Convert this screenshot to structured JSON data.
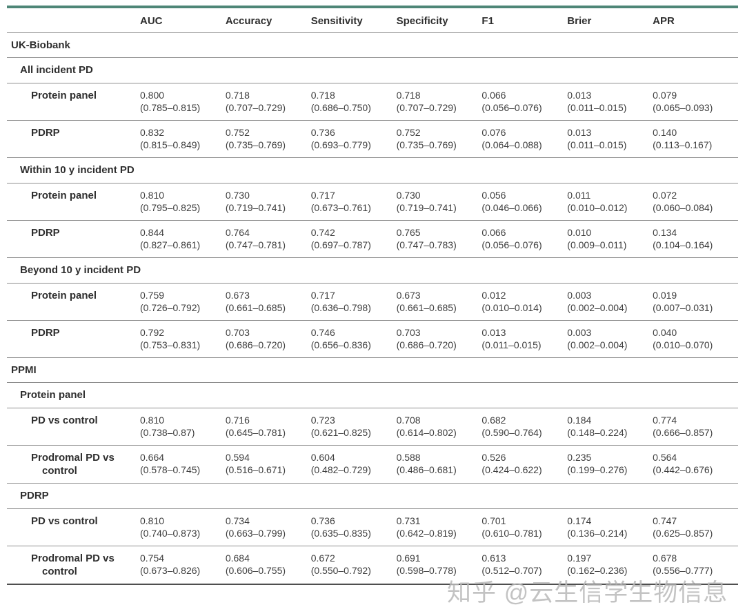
{
  "colors": {
    "accent_top_border": "#4e8677",
    "row_separator": "#8d8d8d",
    "text": "#2e2e2e",
    "watermark": "#b9b9b9"
  },
  "watermark": {
    "text": "知乎 @云生信学生物信息"
  },
  "table": {
    "columns": [
      "AUC",
      "Accuracy",
      "Sensitivity",
      "Specificity",
      "F1",
      "Brier",
      "APR"
    ],
    "rows": [
      {
        "type": "section",
        "label": "UK-Biobank"
      },
      {
        "type": "subsection",
        "label": "All incident PD"
      },
      {
        "type": "data",
        "label": "Protein panel",
        "values": [
          [
            "0.800",
            "(0.785–0.815)"
          ],
          [
            "0.718",
            "(0.707–0.729)"
          ],
          [
            "0.718",
            "(0.686–0.750)"
          ],
          [
            "0.718",
            "(0.707–0.729)"
          ],
          [
            "0.066",
            "(0.056–0.076)"
          ],
          [
            "0.013",
            "(0.011–0.015)"
          ],
          [
            "0.079",
            "(0.065–0.093)"
          ]
        ]
      },
      {
        "type": "data",
        "label": "PDRP",
        "values": [
          [
            "0.832",
            "(0.815–0.849)"
          ],
          [
            "0.752",
            "(0.735–0.769)"
          ],
          [
            "0.736",
            "(0.693–0.779)"
          ],
          [
            "0.752",
            "(0.735–0.769)"
          ],
          [
            "0.076",
            "(0.064–0.088)"
          ],
          [
            "0.013",
            "(0.011–0.015)"
          ],
          [
            "0.140",
            "(0.113–0.167)"
          ]
        ]
      },
      {
        "type": "subsection",
        "label": "Within 10 y incident PD"
      },
      {
        "type": "data",
        "label": "Protein panel",
        "values": [
          [
            "0.810",
            "(0.795–0.825)"
          ],
          [
            "0.730",
            "(0.719–0.741)"
          ],
          [
            "0.717",
            "(0.673–0.761)"
          ],
          [
            "0.730",
            "(0.719–0.741)"
          ],
          [
            "0.056",
            "(0.046–0.066)"
          ],
          [
            "0.011",
            "(0.010–0.012)"
          ],
          [
            "0.072",
            "(0.060–0.084)"
          ]
        ]
      },
      {
        "type": "data",
        "label": "PDRP",
        "values": [
          [
            "0.844",
            "(0.827–0.861)"
          ],
          [
            "0.764",
            "(0.747–0.781)"
          ],
          [
            "0.742",
            "(0.697–0.787)"
          ],
          [
            "0.765",
            "(0.747–0.783)"
          ],
          [
            "0.066",
            "(0.056–0.076)"
          ],
          [
            "0.010",
            "(0.009–0.011)"
          ],
          [
            "0.134",
            "(0.104–0.164)"
          ]
        ]
      },
      {
        "type": "subsection",
        "label": "Beyond 10 y incident PD"
      },
      {
        "type": "data",
        "label": "Protein panel",
        "values": [
          [
            "0.759",
            "(0.726–0.792)"
          ],
          [
            "0.673",
            "(0.661–0.685)"
          ],
          [
            "0.717",
            "(0.636–0.798)"
          ],
          [
            "0.673",
            "(0.661–0.685)"
          ],
          [
            "0.012",
            "(0.010–0.014)"
          ],
          [
            "0.003",
            "(0.002–0.004)"
          ],
          [
            "0.019",
            "(0.007–0.031)"
          ]
        ]
      },
      {
        "type": "data",
        "label": "PDRP",
        "values": [
          [
            "0.792",
            "(0.753–0.831)"
          ],
          [
            "0.703",
            "(0.686–0.720)"
          ],
          [
            "0.746",
            "(0.656–0.836)"
          ],
          [
            "0.703",
            "(0.686–0.720)"
          ],
          [
            "0.013",
            "(0.011–0.015)"
          ],
          [
            "0.003",
            "(0.002–0.004)"
          ],
          [
            "0.040",
            "(0.010–0.070)"
          ]
        ]
      },
      {
        "type": "section",
        "label": "PPMI"
      },
      {
        "type": "subsection",
        "label": "Protein panel"
      },
      {
        "type": "data",
        "label": "PD vs control",
        "values": [
          [
            "0.810",
            "(0.738–0.87)"
          ],
          [
            "0.716",
            "(0.645–0.781)"
          ],
          [
            "0.723",
            "(0.621–0.825)"
          ],
          [
            "0.708",
            "(0.614–0.802)"
          ],
          [
            "0.682",
            "(0.590–0.764)"
          ],
          [
            "0.184",
            "(0.148–0.224)"
          ],
          [
            "0.774",
            "(0.666–0.857)"
          ]
        ]
      },
      {
        "type": "data",
        "label": "Prodromal PD vs control",
        "values": [
          [
            "0.664",
            "(0.578–0.745)"
          ],
          [
            "0.594",
            "(0.516–0.671)"
          ],
          [
            "0.604",
            "(0.482–0.729)"
          ],
          [
            "0.588",
            "(0.486–0.681)"
          ],
          [
            "0.526",
            "(0.424–0.622)"
          ],
          [
            "0.235",
            "(0.199–0.276)"
          ],
          [
            "0.564",
            "(0.442–0.676)"
          ]
        ]
      },
      {
        "type": "subsection",
        "label": "PDRP"
      },
      {
        "type": "data",
        "label": "PD vs control",
        "values": [
          [
            "0.810",
            "(0.740–0.873)"
          ],
          [
            "0.734",
            "(0.663–0.799)"
          ],
          [
            "0.736",
            "(0.635–0.835)"
          ],
          [
            "0.731",
            "(0.642–0.819)"
          ],
          [
            "0.701",
            "(0.610–0.781)"
          ],
          [
            "0.174",
            "(0.136–0.214)"
          ],
          [
            "0.747",
            "(0.625–0.857)"
          ]
        ]
      },
      {
        "type": "data",
        "label": "Prodromal PD vs control",
        "values": [
          [
            "0.754",
            "(0.673–0.826)"
          ],
          [
            "0.684",
            "(0.606–0.755)"
          ],
          [
            "0.672",
            "(0.550–0.792)"
          ],
          [
            "0.691",
            "(0.598–0.778)"
          ],
          [
            "0.613",
            "(0.512–0.707)"
          ],
          [
            "0.197",
            "(0.162–0.236)"
          ],
          [
            "0.678",
            "(0.556–0.777)"
          ]
        ]
      }
    ]
  }
}
